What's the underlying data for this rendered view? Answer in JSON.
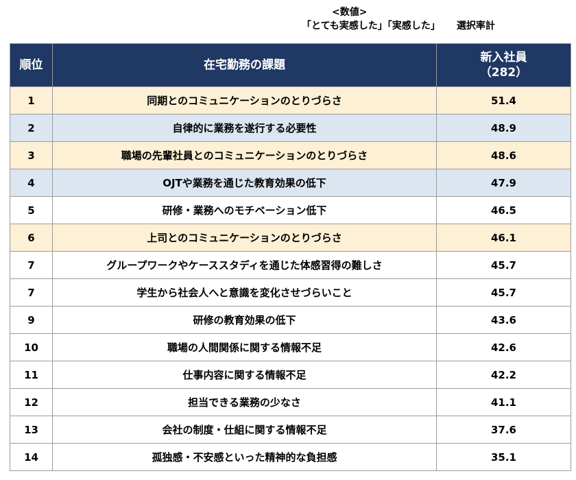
{
  "note": {
    "line1": "<数値>",
    "line2_a": "「とても実感した」「実感した」",
    "line2_b": "選択率計"
  },
  "table": {
    "headers": {
      "rank": "順位",
      "issue": "在宅勤務の課題",
      "value_line1": "新入社員",
      "value_line2": "（282）"
    },
    "highlight_colors": {
      "peach": "#fdf0d5",
      "blue": "#dce6f1",
      "header": "#1f3864"
    },
    "rows": [
      {
        "rank": "1",
        "issue": "同期とのコミュニケーションのとりづらさ",
        "value": "51.4",
        "highlight": "peach"
      },
      {
        "rank": "2",
        "issue": "自律的に業務を遂行する必要性",
        "value": "48.9",
        "highlight": "blue"
      },
      {
        "rank": "3",
        "issue": "職場の先輩社員とのコミュニケーションのとりづらさ",
        "value": "48.6",
        "highlight": "peach"
      },
      {
        "rank": "4",
        "issue": "OJTや業務を通じた教育効果の低下",
        "value": "47.9",
        "highlight": "blue"
      },
      {
        "rank": "5",
        "issue": "研修・業務へのモチベーション低下",
        "value": "46.5",
        "highlight": "none"
      },
      {
        "rank": "6",
        "issue": "上司とのコミュニケーションのとりづらさ",
        "value": "46.1",
        "highlight": "peach"
      },
      {
        "rank": "7",
        "issue": "グループワークやケーススタディを通じた体感習得の難しさ",
        "value": "45.7",
        "highlight": "none"
      },
      {
        "rank": "7",
        "issue": "学生から社会人へと意識を変化させづらいこと",
        "value": "45.7",
        "highlight": "none"
      },
      {
        "rank": "9",
        "issue": "研修の教育効果の低下",
        "value": "43.6",
        "highlight": "none"
      },
      {
        "rank": "10",
        "issue": "職場の人間関係に関する情報不足",
        "value": "42.6",
        "highlight": "none"
      },
      {
        "rank": "11",
        "issue": "仕事内容に関する情報不足",
        "value": "42.2",
        "highlight": "none"
      },
      {
        "rank": "12",
        "issue": "担当できる業務の少なさ",
        "value": "41.1",
        "highlight": "none"
      },
      {
        "rank": "13",
        "issue": "会社の制度・仕組に関する情報不足",
        "value": "37.6",
        "highlight": "none"
      },
      {
        "rank": "14",
        "issue": "孤独感・不安感といった精神的な負担感",
        "value": "35.1",
        "highlight": "none"
      }
    ]
  }
}
